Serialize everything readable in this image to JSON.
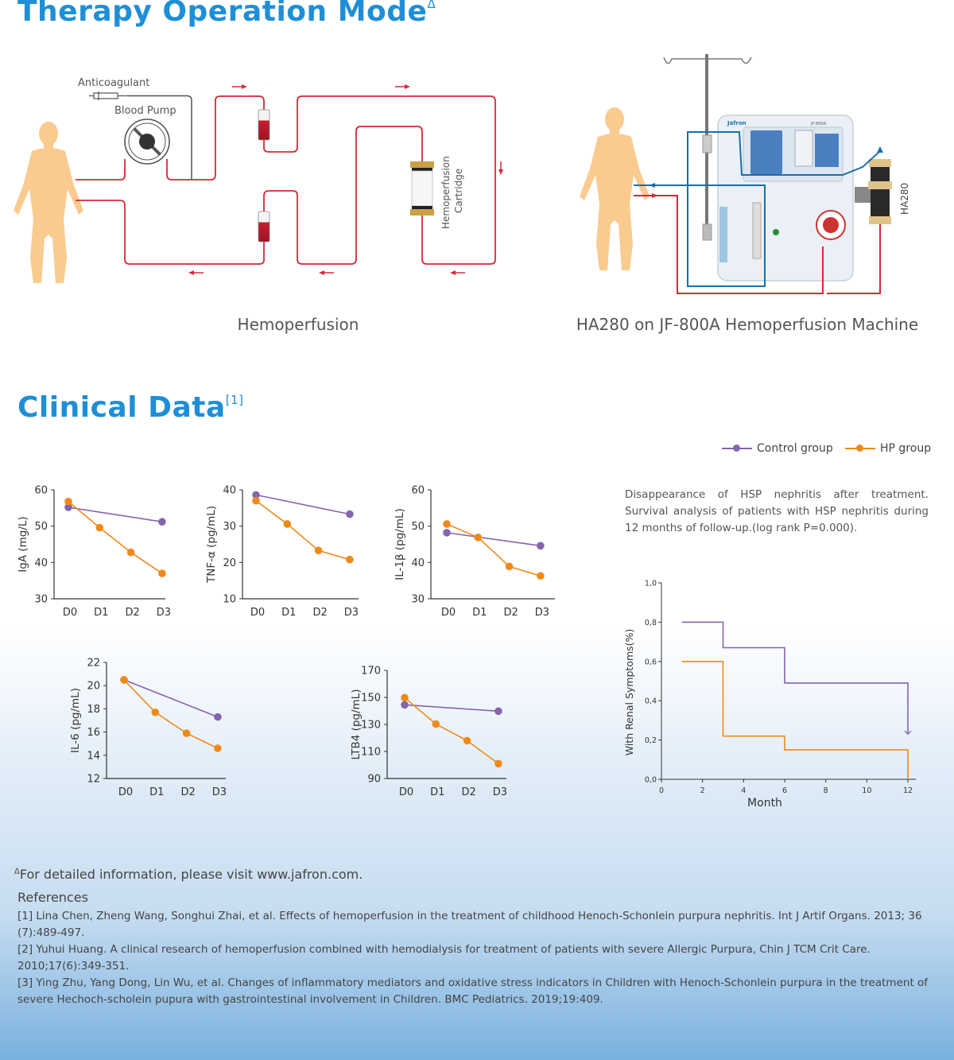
{
  "therapy": {
    "title": "Therapy Operation Mode",
    "title_sup": "Δ",
    "diagram": {
      "anticoagulant_label": "Anticoagulant",
      "blood_pump_label": "Blood Pump",
      "cartridge_label_1": "Hemoperfusion",
      "cartridge_label_2": "Cartridge",
      "caption": "Hemoperfusion"
    },
    "machine": {
      "brand": "Jafron",
      "model_small": "JF-800A",
      "cartridge_label": "HA280",
      "caption": "HA280 on JF-800A Hemoperfusion Machine"
    }
  },
  "clinical": {
    "title": "Clinical Data",
    "title_sup": "[1]",
    "legend": {
      "control": "Control group",
      "hp": "HP group"
    },
    "colors": {
      "control": "#8565ad",
      "hp": "#ef8a1a",
      "title": "#1e8fd6",
      "tube_red": "#d7283a",
      "tube_blue": "#1b6fa8",
      "skin": "#f9cb8e"
    },
    "survival_description": "Disappearance of HSP nephritis after treatment. Survival analysis of patients with HSP nephritis during 12 months of follow-up.(log rank P=0.000)."
  },
  "chart_data": [
    {
      "id": "iga",
      "type": "line",
      "ylabel": "IgA (mg/L)",
      "categories": [
        "D0",
        "D1",
        "D2",
        "D3"
      ],
      "ylim": [
        30,
        60
      ],
      "yticks": [
        30,
        40,
        50,
        60
      ],
      "series": [
        {
          "name": "Control group",
          "x": [
            0,
            3
          ],
          "values": [
            55.2,
            51.2
          ]
        },
        {
          "name": "HP group",
          "x": [
            0,
            1,
            2,
            3
          ],
          "values": [
            56.8,
            49.6,
            42.8,
            37.0
          ]
        }
      ]
    },
    {
      "id": "tnf",
      "type": "line",
      "ylabel": "TNF-α (pg/mL)",
      "categories": [
        "D0",
        "D1",
        "D2",
        "D3"
      ],
      "ylim": [
        10,
        40
      ],
      "yticks": [
        10,
        20,
        30,
        40
      ],
      "series": [
        {
          "name": "Control group",
          "x": [
            0,
            3
          ],
          "values": [
            38.6,
            33.3
          ]
        },
        {
          "name": "HP group",
          "x": [
            0,
            1,
            2,
            3
          ],
          "values": [
            37.0,
            30.6,
            23.3,
            20.8
          ]
        }
      ]
    },
    {
      "id": "il1b",
      "type": "line",
      "ylabel": "IL-1β (pg/mL)",
      "categories": [
        "D0",
        "D1",
        "D2",
        "D3"
      ],
      "ylim": [
        30,
        60
      ],
      "yticks": [
        30,
        40,
        50,
        60
      ],
      "series": [
        {
          "name": "Control group",
          "x": [
            0,
            3
          ],
          "values": [
            48.2,
            44.6
          ]
        },
        {
          "name": "HP group",
          "x": [
            0,
            1,
            2,
            3
          ],
          "values": [
            50.6,
            46.9,
            38.9,
            36.3
          ]
        }
      ]
    },
    {
      "id": "il6",
      "type": "line",
      "ylabel": "IL-6 (pg/mL)",
      "categories": [
        "D0",
        "D1",
        "D2",
        "D3"
      ],
      "ylim": [
        12,
        22
      ],
      "yticks": [
        12,
        14,
        16,
        18,
        20,
        22
      ],
      "series": [
        {
          "name": "Control group",
          "x": [
            0,
            3
          ],
          "values": [
            20.5,
            17.3
          ]
        },
        {
          "name": "HP group",
          "x": [
            0,
            1,
            2,
            3
          ],
          "values": [
            20.5,
            17.7,
            15.9,
            14.6
          ]
        }
      ]
    },
    {
      "id": "ltb4",
      "type": "line",
      "ylabel": "LTB4 (pg/mL)",
      "categories": [
        "D0",
        "D1",
        "D2",
        "D3"
      ],
      "ylim": [
        90,
        170
      ],
      "yticks": [
        90,
        110,
        130,
        150,
        170
      ],
      "series": [
        {
          "name": "Control group",
          "x": [
            0,
            3
          ],
          "values": [
            144.5,
            139.8
          ]
        },
        {
          "name": "HP group",
          "x": [
            0,
            1,
            2,
            3
          ],
          "values": [
            149.8,
            130.3,
            118.0,
            101.0
          ]
        }
      ]
    },
    {
      "id": "survival",
      "type": "line",
      "step": true,
      "ylabel": "With Renal Symptoms(%)",
      "xlabel": "Month",
      "xlim": [
        0,
        12
      ],
      "xticks": [
        "0",
        "2",
        "4",
        "6",
        "8",
        "10",
        "12"
      ],
      "ylim": [
        0,
        1.0
      ],
      "yticks": [
        "0,0",
        "0,2",
        "0,4",
        "0,6",
        "0,8",
        "1,0"
      ],
      "series": [
        {
          "name": "Control group",
          "x": [
            1,
            3,
            3,
            6,
            6,
            12,
            12
          ],
          "values": [
            0.8,
            0.8,
            0.67,
            0.67,
            0.49,
            0.49,
            0.23
          ]
        },
        {
          "name": "HP group",
          "x": [
            1,
            3,
            3,
            6,
            6,
            12,
            12
          ],
          "values": [
            0.6,
            0.6,
            0.22,
            0.22,
            0.15,
            0.15,
            0.0
          ]
        }
      ]
    }
  ],
  "footer": {
    "note_sup": "Δ",
    "note": "For detailed information, please visit www.jafron.com.",
    "references_heading": "References",
    "references": [
      "[1] Lina Chen, Zheng Wang, Songhui Zhai, et al. Effects of hemoperfusion in the treatment of childhood Henoch-Schonlein purpura nephritis. Int J Artif Organs. 2013; 36 (7):489-497.",
      "[2] Yuhui Huang. A clinical research of hemoperfusion combined with hemodialysis for treatment of patients with severe Allergic Purpura, Chin J TCM Crit Care. 2010;17(6):349-351.",
      "[3] Ying Zhu, Yang Dong, Lin Wu, et al. Changes of inflammatory mediators and oxidative stress indicators in Children with Henoch-Schonlein purpura in the treatment of severe Hechoch-scholein pupura with gastrointestinal involvement in Children. BMC Pediatrics. 2019;19:409."
    ]
  }
}
